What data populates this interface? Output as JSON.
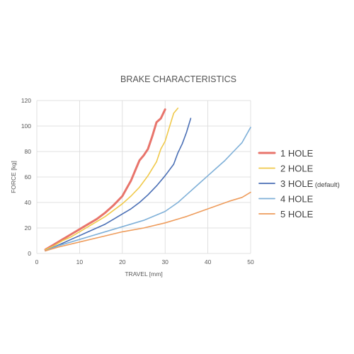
{
  "chart_data": {
    "type": "line",
    "title": "BRAKE CHARACTERISTICS",
    "xlabel": "TRAVEL [mm]",
    "ylabel": "FORCE [kg]",
    "xlim": [
      0,
      50
    ],
    "ylim": [
      0,
      120
    ],
    "xticks": [
      0,
      10,
      20,
      30,
      40,
      50
    ],
    "yticks": [
      0,
      20,
      40,
      60,
      80,
      100,
      120
    ],
    "grid": true,
    "legend_position": "right",
    "series": [
      {
        "name": "1 HOLE",
        "color": "#e8746b",
        "x": [
          2,
          4,
          6,
          8,
          10,
          12,
          14,
          16,
          18,
          20,
          21,
          22,
          23,
          24,
          25,
          26,
          27,
          28,
          29,
          30
        ],
        "y": [
          3,
          7,
          11,
          15,
          19,
          23,
          27,
          32,
          38,
          45,
          51,
          57,
          65,
          73,
          77,
          82,
          92,
          103,
          106,
          113
        ]
      },
      {
        "name": "2 HOLE",
        "color": "#f0c94a",
        "x": [
          2,
          4,
          6,
          8,
          10,
          12,
          14,
          16,
          18,
          20,
          22,
          24,
          26,
          28,
          29,
          30,
          31,
          32,
          33
        ],
        "y": [
          3,
          6,
          10,
          13,
          17,
          21,
          25,
          29,
          34,
          39,
          45,
          52,
          61,
          72,
          82,
          88,
          99,
          110,
          114
        ]
      },
      {
        "name": "3 HOLE",
        "suffix": "(default)",
        "color": "#4a6fb5",
        "x": [
          2,
          4,
          6,
          8,
          10,
          12,
          14,
          16,
          18,
          20,
          22,
          24,
          26,
          28,
          30,
          32,
          33,
          34,
          35,
          36
        ],
        "y": [
          2,
          5,
          8,
          11,
          14,
          17,
          20,
          23,
          27,
          31,
          35,
          40,
          46,
          53,
          61,
          70,
          79,
          86,
          95,
          106
        ]
      },
      {
        "name": "4 HOLE",
        "color": "#7fb0d8",
        "x": [
          2,
          5,
          10,
          15,
          20,
          25,
          30,
          33,
          35,
          38,
          40,
          42,
          44,
          46,
          48,
          50
        ],
        "y": [
          2,
          6,
          11,
          16,
          21,
          26,
          33,
          40,
          46,
          55,
          61,
          67,
          73,
          80,
          87,
          99
        ]
      },
      {
        "name": "5 HOLE",
        "color": "#ee9c5c",
        "x": [
          2,
          5,
          10,
          15,
          20,
          25,
          30,
          35,
          40,
          45,
          48,
          50
        ],
        "y": [
          2,
          5,
          9,
          13,
          17,
          20,
          24,
          29,
          35,
          41,
          44,
          48
        ]
      }
    ]
  }
}
